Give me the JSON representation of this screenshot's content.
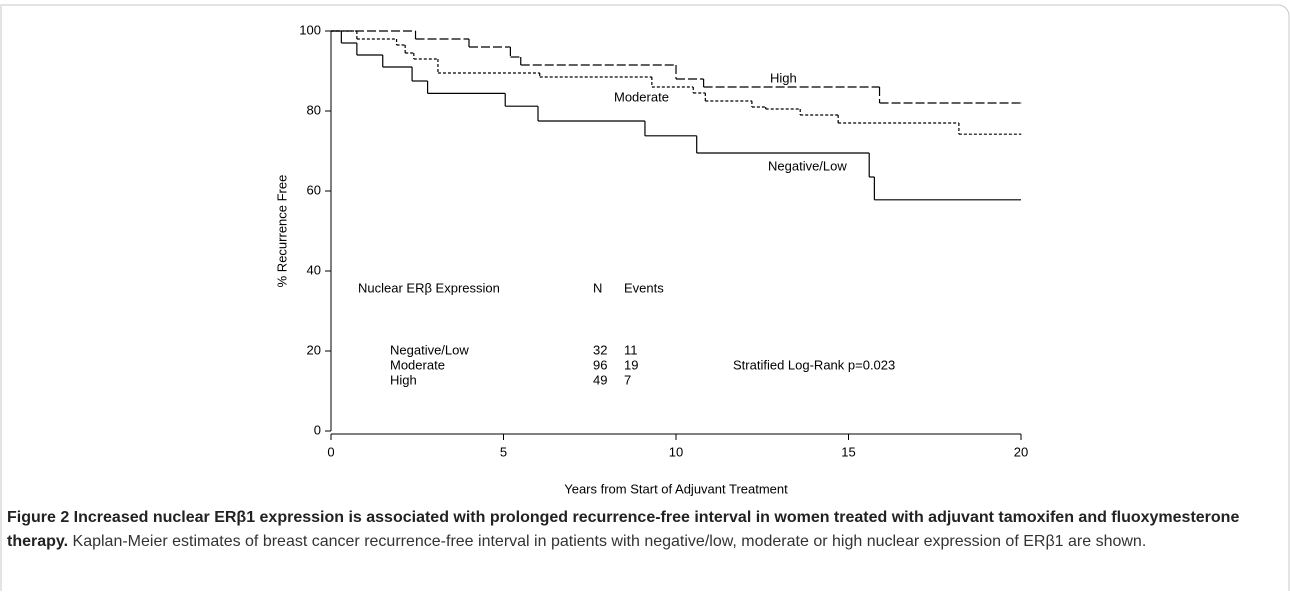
{
  "chart_data": {
    "type": "step",
    "xlabel": "Years from Start of Adjuvant Treatment",
    "ylabel": "% Recurrence Free",
    "xlim": [
      0,
      20
    ],
    "xticks": [
      0,
      5,
      10,
      15,
      20
    ],
    "ylim": [
      0,
      100
    ],
    "yticks": [
      0,
      20,
      40,
      60,
      80,
      100
    ],
    "series": [
      {
        "name": "Negative/Low",
        "color": "#000000",
        "dash": "solid",
        "x": [
          0,
          0.3,
          0.75,
          1.5,
          2.35,
          2.8,
          5.05,
          6.0,
          9.1,
          10.6,
          15.6,
          15.75,
          20
        ],
        "values": [
          100,
          97,
          94,
          91,
          87.5,
          84.4,
          81.2,
          77.5,
          73.8,
          69.5,
          63.5,
          57.8,
          57.8
        ]
      },
      {
        "name": "Moderate",
        "color": "#000000",
        "dash": "dotted",
        "x": [
          0,
          0.75,
          1.9,
          2.15,
          2.4,
          3.1,
          6.05,
          9.3,
          10.5,
          10.85,
          12.2,
          12.6,
          13.6,
          14.7,
          18.2,
          20
        ],
        "values": [
          100,
          98,
          96.5,
          94.5,
          93,
          89.5,
          88.5,
          86,
          84.5,
          82.5,
          81,
          80.5,
          79,
          77,
          74.2,
          74.2
        ]
      },
      {
        "name": "High",
        "color": "#000000",
        "dash": "dashed",
        "x": [
          0,
          2.45,
          4.0,
          5.2,
          5.5,
          10.0,
          10.8,
          15.9,
          20
        ],
        "values": [
          100,
          98,
          96,
          93.5,
          91.5,
          88,
          86,
          82,
          82
        ]
      }
    ],
    "legend_table": {
      "header": [
        "Nuclear ERβ Expression",
        "N",
        "Events"
      ],
      "rows": [
        [
          "Negative/Low",
          "32",
          "11"
        ],
        [
          "Moderate",
          "96",
          "19"
        ],
        [
          "High",
          "49",
          "7"
        ]
      ]
    },
    "annotation": "Stratified Log-Rank p=0.023"
  },
  "caption": {
    "title": "Figure 2 Increased nuclear ERβ1 expression is associated with prolonged recurrence-free interval in women treated with adjuvant tamoxifen and fluoxymesterone therapy.",
    "text": "Kaplan-Meier estimates of breast cancer recurrence-free interval in patients with negative/low, moderate or high nuclear expression of ERβ1 are shown."
  }
}
